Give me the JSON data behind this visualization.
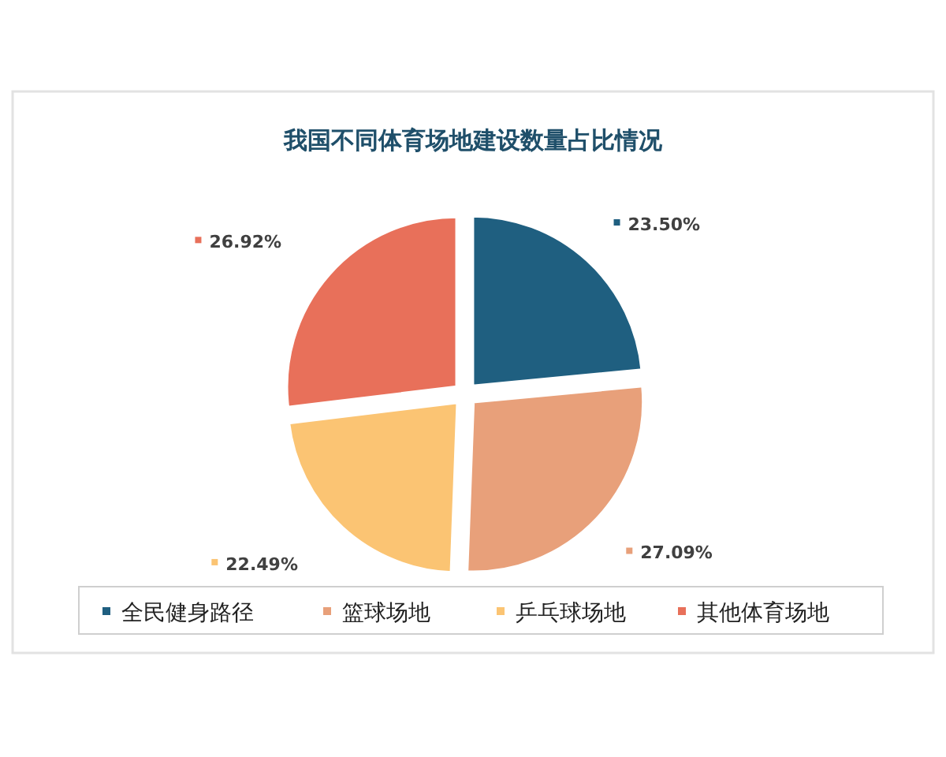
{
  "chart_data": {
    "type": "pie",
    "title": "我国不同体育场地建设数量占比情况",
    "categories": [
      "全民健身路径",
      "篮球场地",
      "乒乓球场地",
      "其他体育场地"
    ],
    "values": [
      23.5,
      27.09,
      22.49,
      26.92
    ],
    "colors": [
      "#1f5f80",
      "#e8a07a",
      "#fbc473",
      "#e8705a"
    ],
    "value_labels": [
      "23.50%",
      "27.09%",
      "22.49%",
      "26.92%"
    ],
    "legend": "bottom"
  }
}
